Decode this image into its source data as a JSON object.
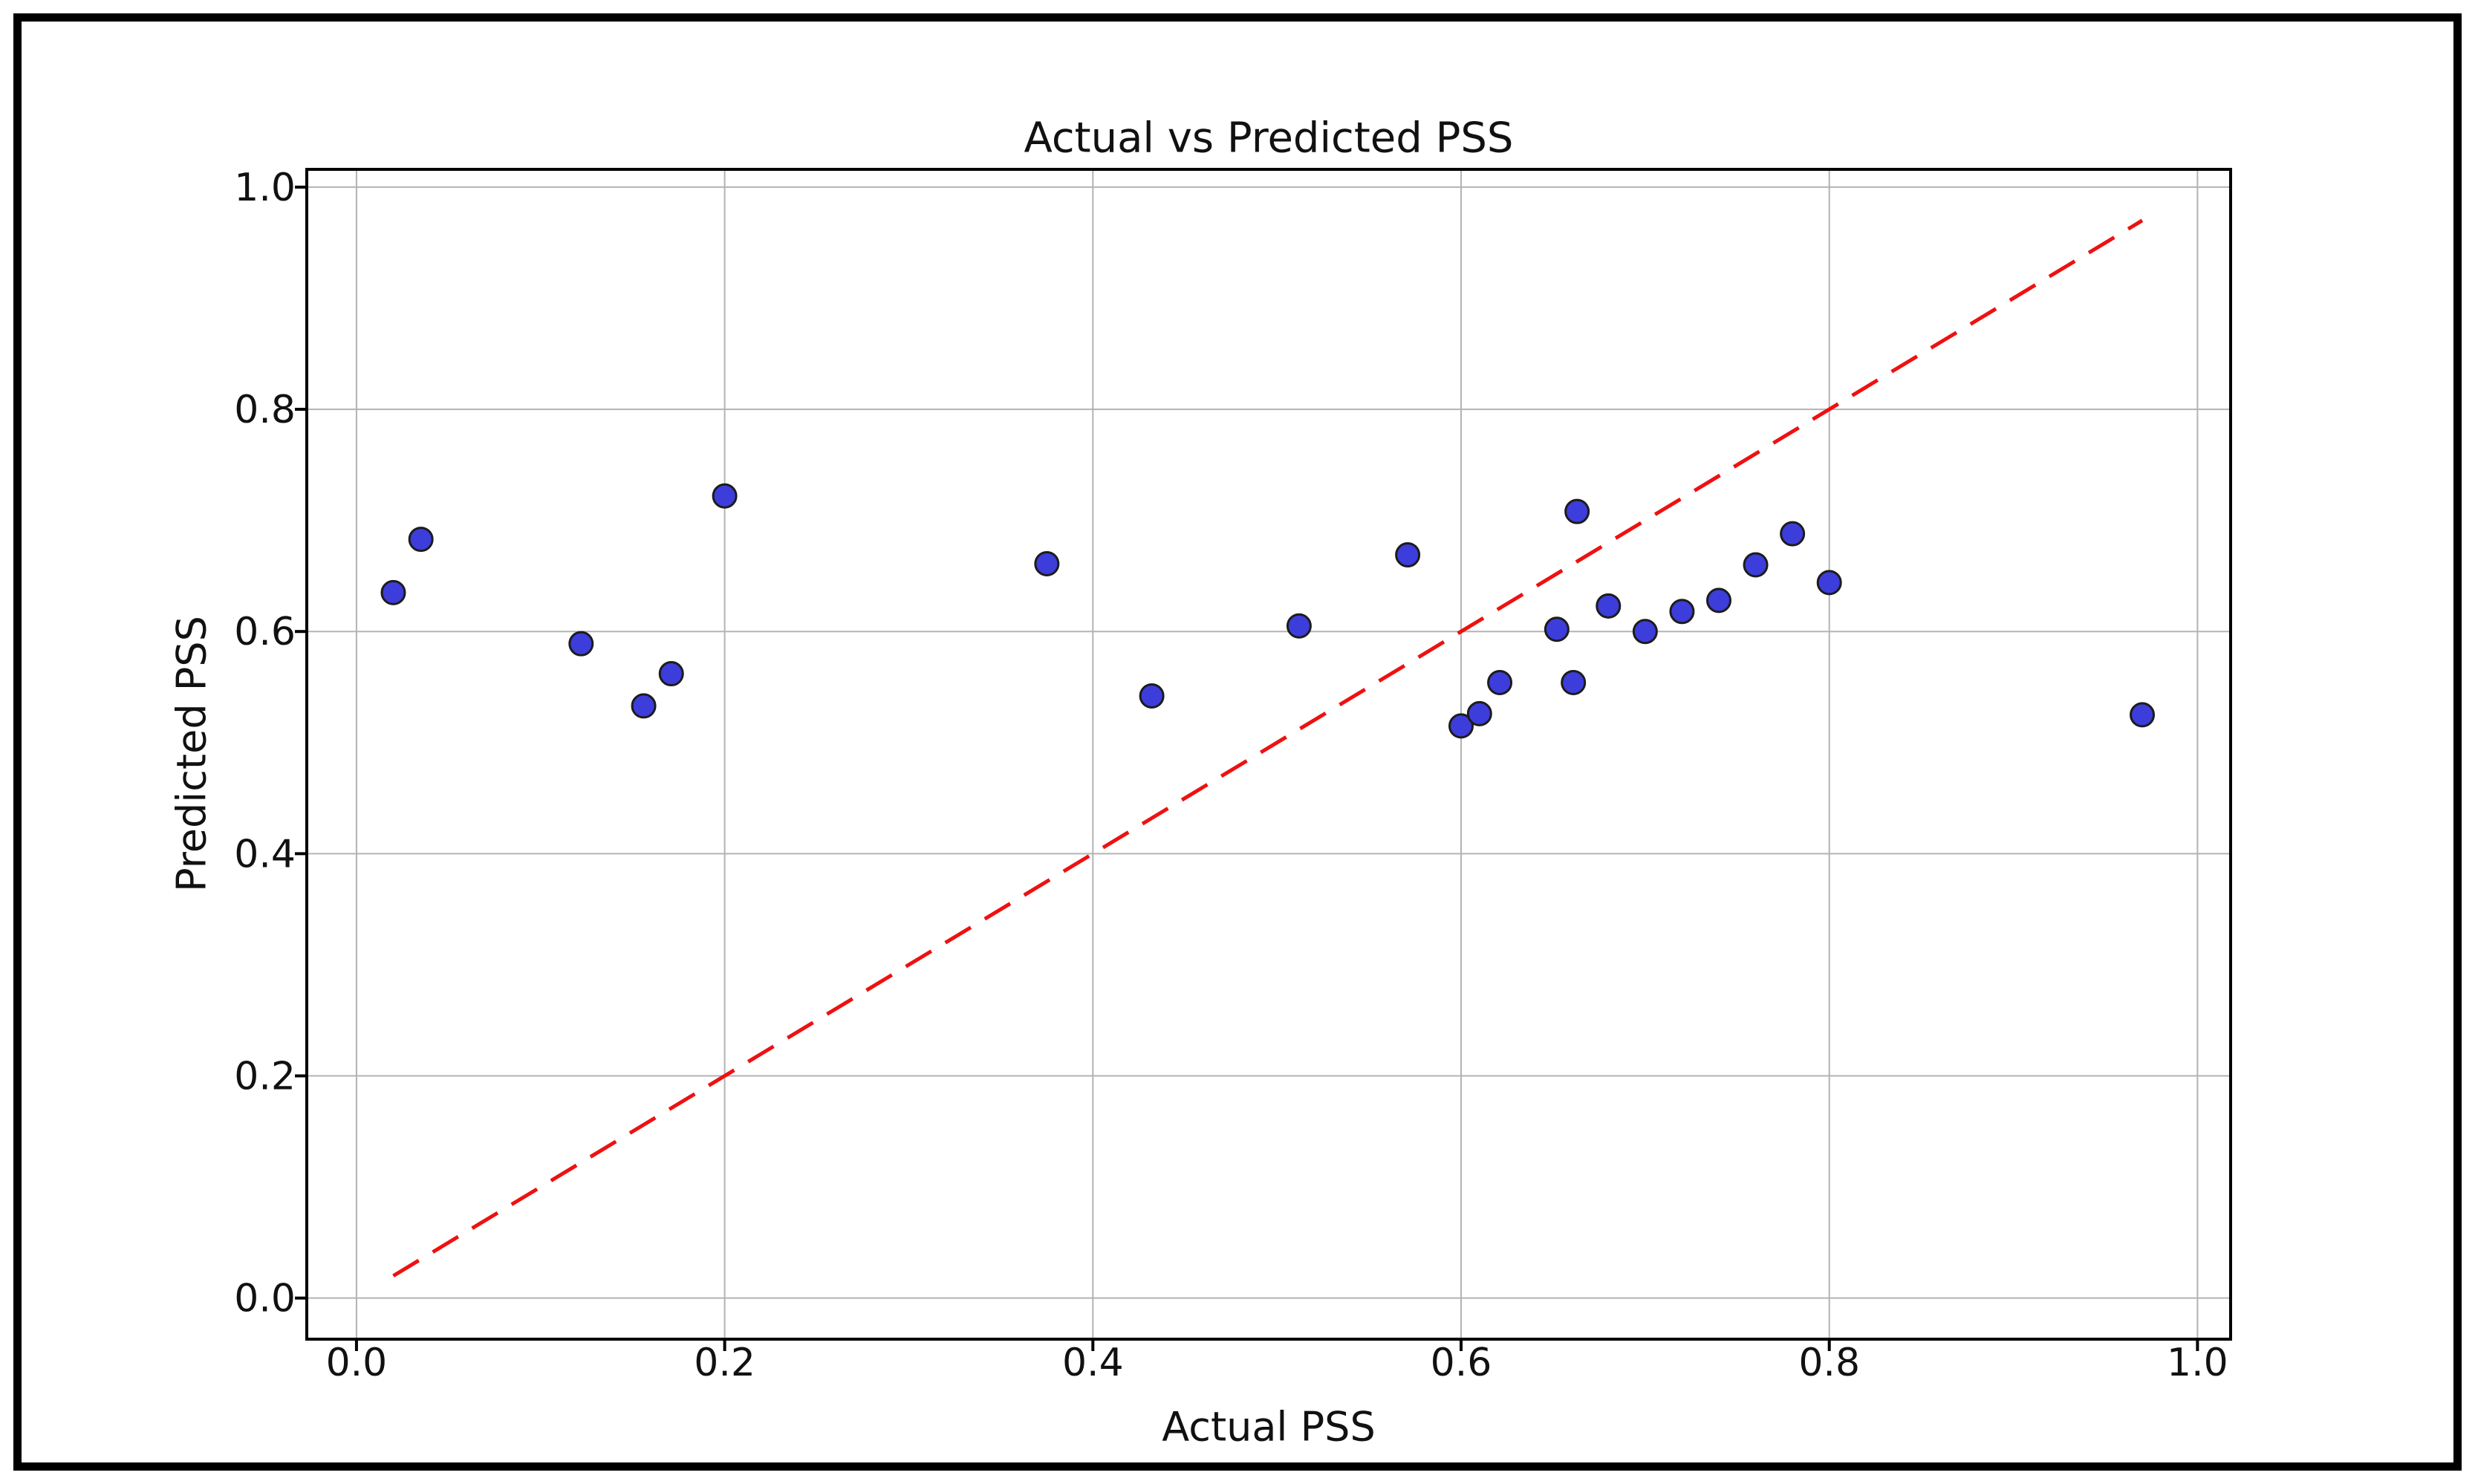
{
  "figure": {
    "background": "#ffffff",
    "frame_color": "#000000"
  },
  "chart_data": {
    "type": "scatter",
    "title": "Actual vs Predicted PSS",
    "xlabel": "Actual PSS",
    "ylabel": "Predicted PSS",
    "xlim": [
      -0.027,
      1.018
    ],
    "ylim": [
      -0.037,
      1.016
    ],
    "xtick_values": [
      0.0,
      0.2,
      0.4,
      0.6,
      0.8,
      1.0
    ],
    "ytick_values": [
      0.0,
      0.2,
      0.4,
      0.6,
      0.8,
      1.0
    ],
    "grid": true,
    "grid_color": "#b3b3b3",
    "spine_color": "#000000",
    "legend": "none",
    "series": [
      {
        "name": "predictions",
        "marker_fill": "#3d3ddb",
        "marker_edge": "#1c1c1c",
        "points": [
          {
            "actual": 0.02,
            "predicted": 0.635
          },
          {
            "actual": 0.035,
            "predicted": 0.683
          },
          {
            "actual": 0.122,
            "predicted": 0.589
          },
          {
            "actual": 0.156,
            "predicted": 0.533
          },
          {
            "actual": 0.171,
            "predicted": 0.562
          },
          {
            "actual": 0.2,
            "predicted": 0.722
          },
          {
            "actual": 0.375,
            "predicted": 0.661
          },
          {
            "actual": 0.432,
            "predicted": 0.542
          },
          {
            "actual": 0.512,
            "predicted": 0.605
          },
          {
            "actual": 0.571,
            "predicted": 0.669
          },
          {
            "actual": 0.6,
            "predicted": 0.515
          },
          {
            "actual": 0.61,
            "predicted": 0.526
          },
          {
            "actual": 0.621,
            "predicted": 0.554
          },
          {
            "actual": 0.652,
            "predicted": 0.602
          },
          {
            "actual": 0.661,
            "predicted": 0.554
          },
          {
            "actual": 0.663,
            "predicted": 0.708
          },
          {
            "actual": 0.68,
            "predicted": 0.623
          },
          {
            "actual": 0.7,
            "predicted": 0.6
          },
          {
            "actual": 0.72,
            "predicted": 0.618
          },
          {
            "actual": 0.74,
            "predicted": 0.628
          },
          {
            "actual": 0.76,
            "predicted": 0.66
          },
          {
            "actual": 0.78,
            "predicted": 0.688
          },
          {
            "actual": 0.8,
            "predicted": 0.644
          },
          {
            "actual": 0.97,
            "predicted": 0.525
          }
        ]
      }
    ],
    "reference_line": {
      "name": "identity-line",
      "x": [
        0.02,
        0.97
      ],
      "y": [
        0.02,
        0.97
      ],
      "color": "#ee1111",
      "style": "dashed"
    }
  }
}
